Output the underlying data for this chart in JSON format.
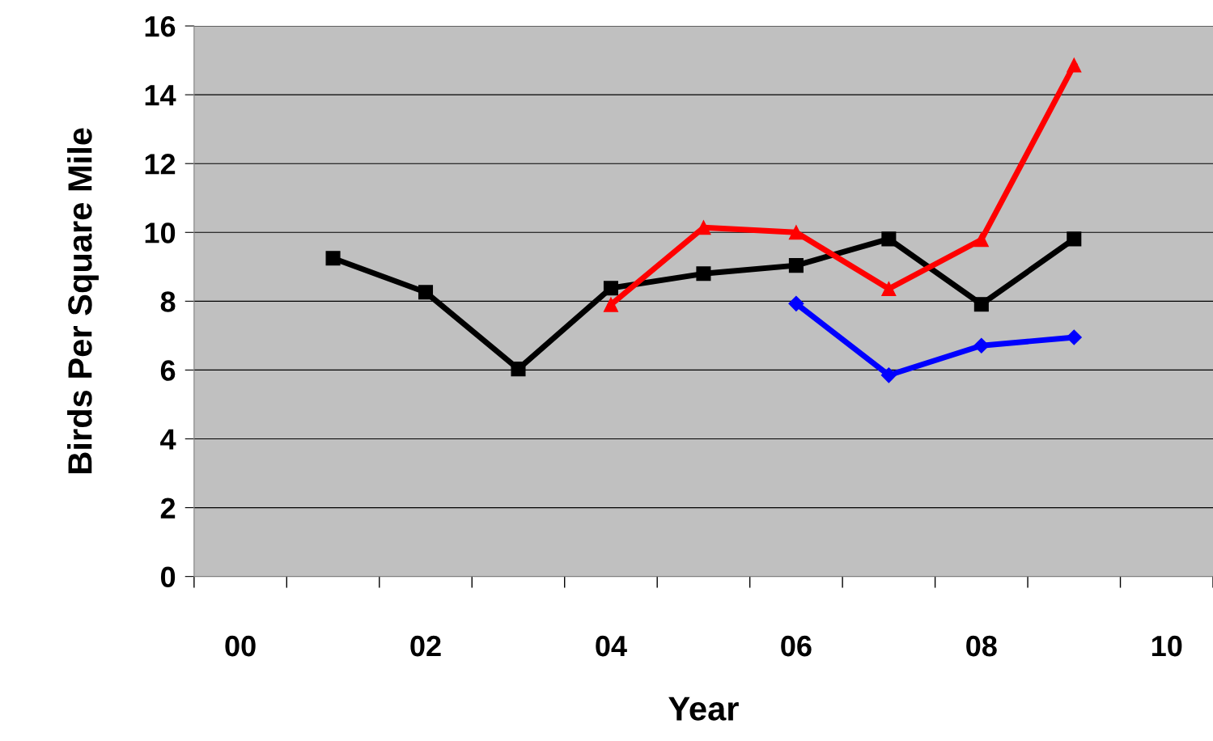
{
  "chart_data": {
    "type": "line",
    "xlabel": "Year",
    "ylabel": "Birds Per Square Mile",
    "categories": [
      "00",
      null,
      "02",
      null,
      "04",
      null,
      "06",
      null,
      "08",
      null,
      "10"
    ],
    "ylim": [
      0,
      16
    ],
    "yticks": [
      0,
      2,
      4,
      6,
      8,
      10,
      12,
      14,
      16
    ],
    "grid": "y",
    "series": [
      {
        "color": "#000000",
        "marker": "square",
        "values": [
          null,
          9.25,
          8.26,
          6.03,
          8.38,
          8.8,
          9.04,
          9.81,
          7.91,
          9.81,
          null
        ]
      },
      {
        "color": "#ff0000",
        "marker": "triangle",
        "values": [
          null,
          null,
          null,
          null,
          7.9,
          10.14,
          10.0,
          8.36,
          9.79,
          14.86,
          null
        ]
      },
      {
        "color": "#0000ff",
        "marker": "diamond",
        "values": [
          null,
          null,
          null,
          null,
          null,
          null,
          7.93,
          5.85,
          6.71,
          6.95,
          null
        ]
      }
    ]
  }
}
